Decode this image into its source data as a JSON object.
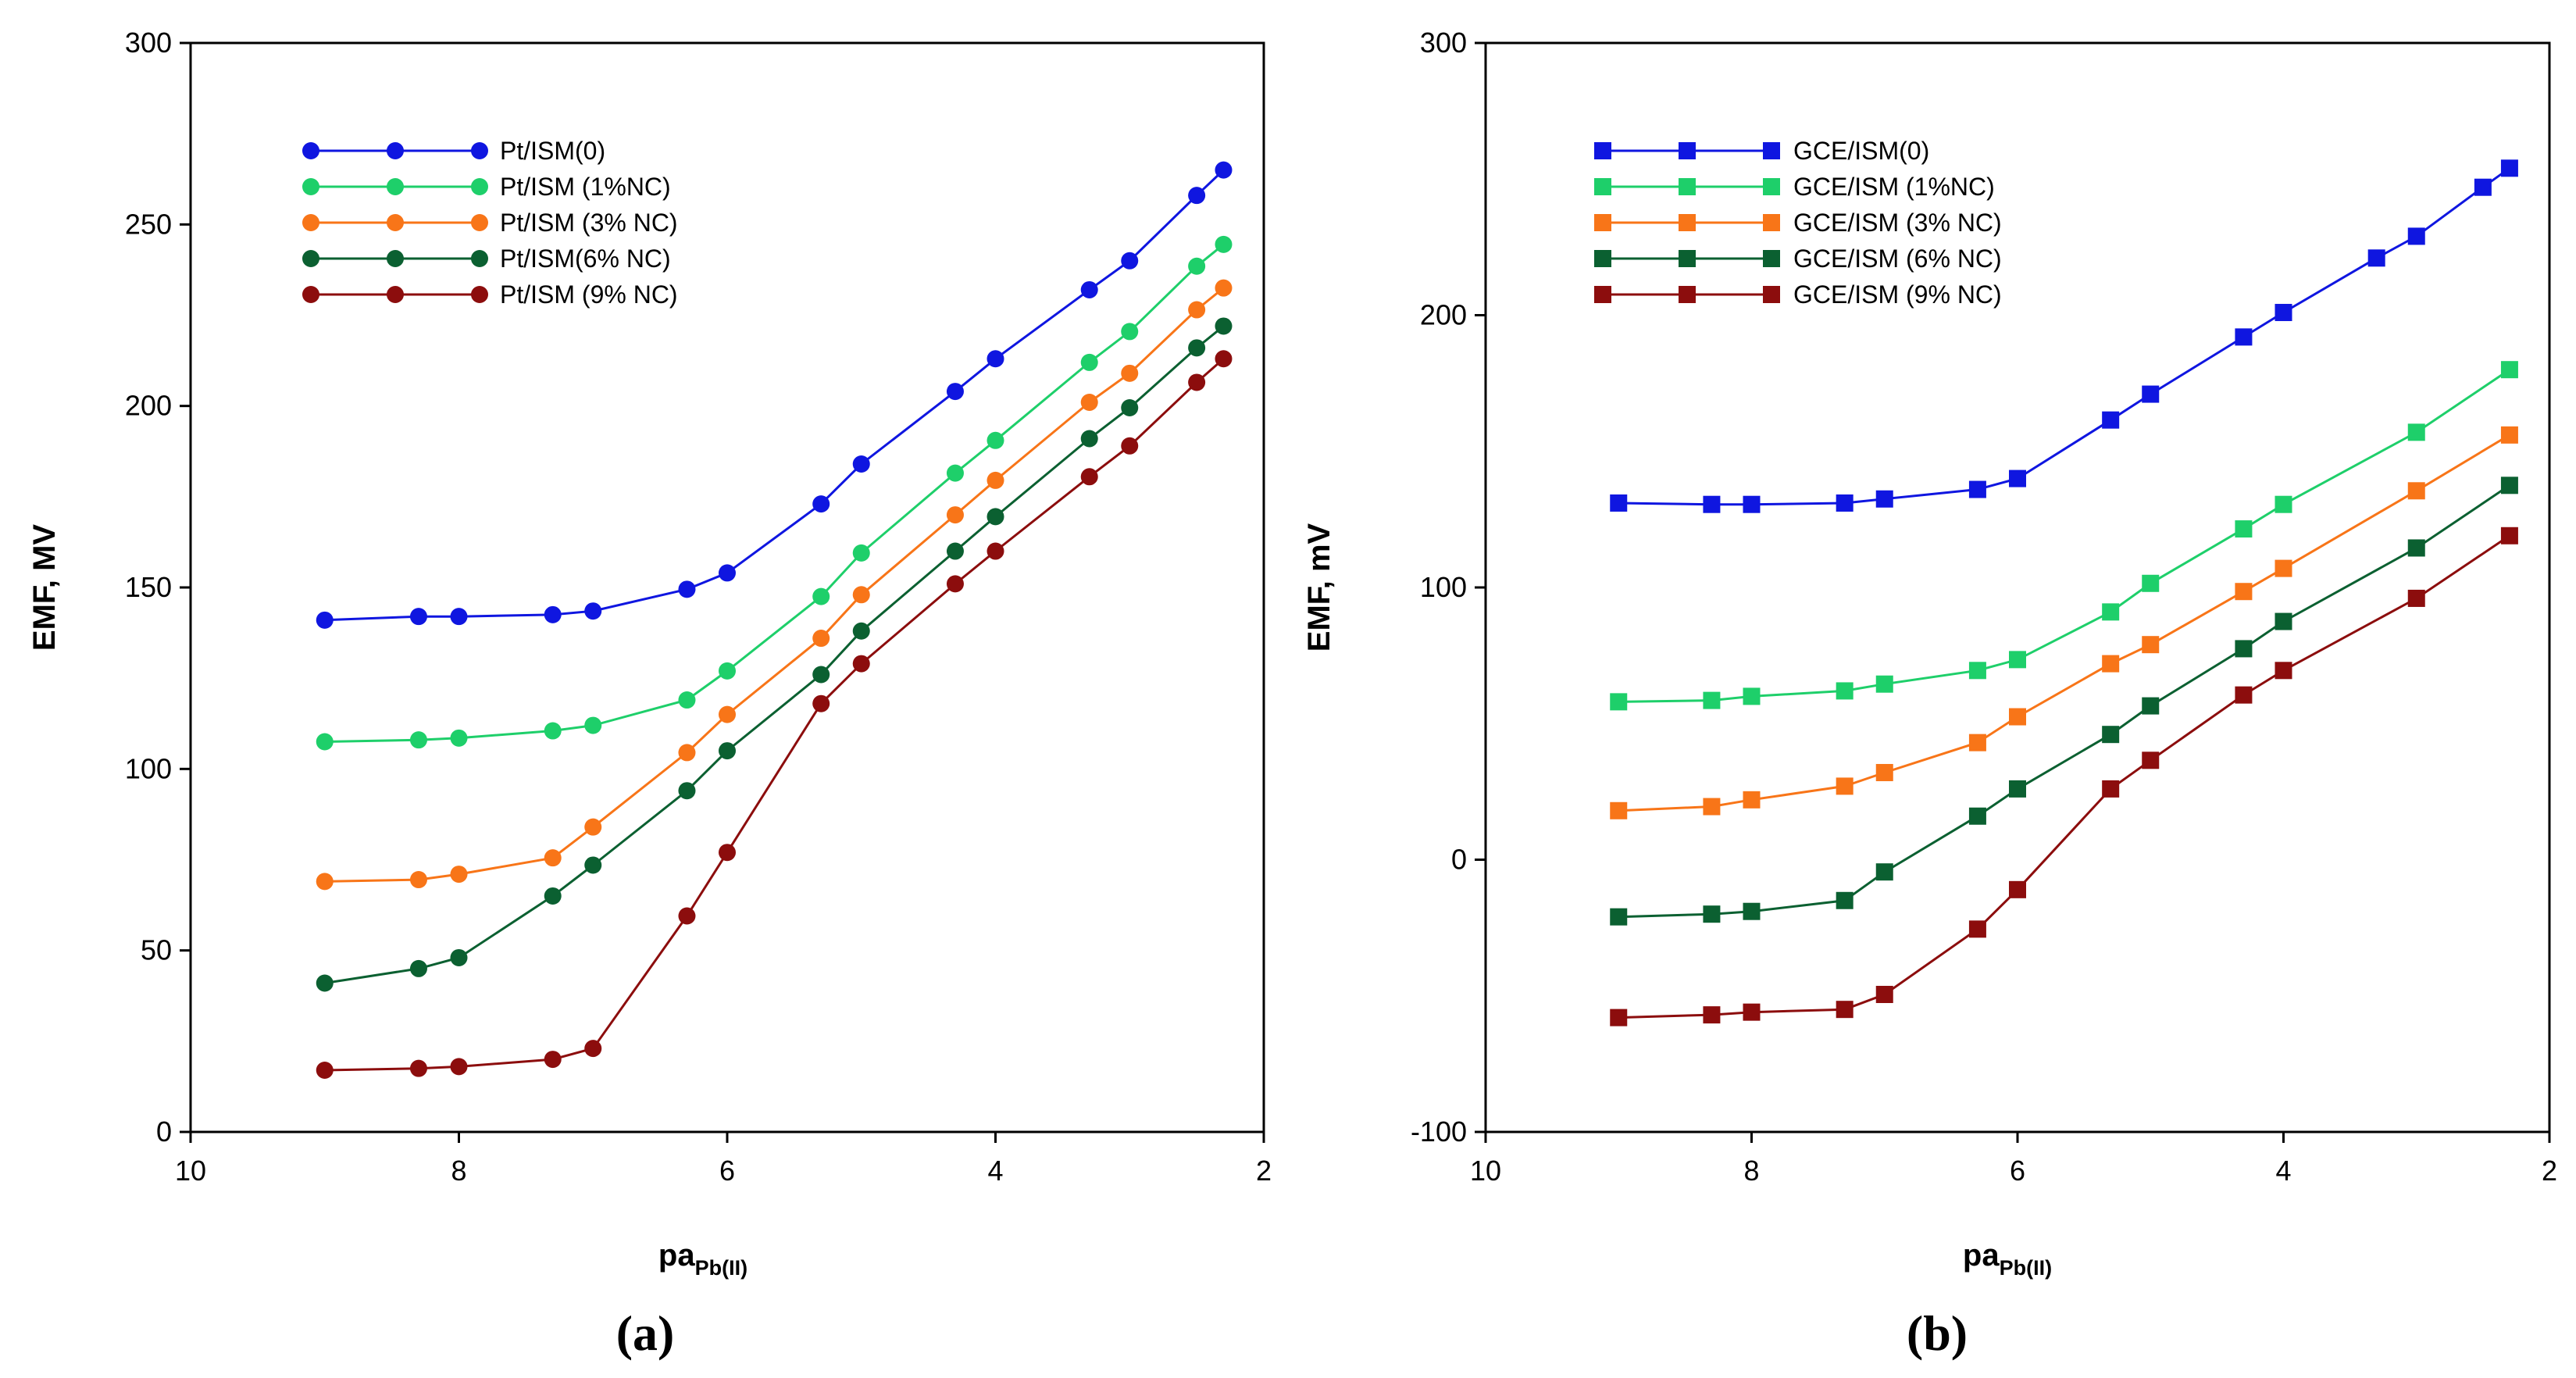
{
  "chart_data": [
    {
      "type": "line",
      "panel_label": "(a)",
      "xlabel": "pa",
      "xlabel_sub": "Pb(II)",
      "ylabel": "EMF, MV",
      "xlim": [
        10,
        2
      ],
      "ylim": [
        0,
        300
      ],
      "x_ticks": [
        10,
        8,
        6,
        4,
        2
      ],
      "y_ticks": [
        0,
        50,
        100,
        150,
        200,
        250,
        300
      ],
      "marker": "circle",
      "legend_position": "top-left",
      "x": [
        9,
        8.3,
        8,
        7.3,
        7,
        6.3,
        6,
        5.3,
        5,
        4.3,
        4,
        3.3,
        3,
        2.5,
        2.3
      ],
      "series": [
        {
          "name": "Pt/ISM(0)",
          "color": "#0f16e0",
          "values": [
            141,
            142,
            142,
            142.5,
            143.5,
            149.5,
            154,
            173,
            184,
            204,
            213,
            232,
            240,
            258,
            265
          ]
        },
        {
          "name": "Pt/ISM (1%NC)",
          "color": "#1ecf6a",
          "values": [
            107.5,
            108,
            108.5,
            110.5,
            112,
            119,
            127,
            147.5,
            159.5,
            181.5,
            190.5,
            212,
            220.5,
            238.5,
            244.5
          ]
        },
        {
          "name": "Pt/ISM (3% NC)",
          "color": "#f87518",
          "values": [
            69,
            69.5,
            71,
            75.5,
            84,
            104.5,
            115,
            136,
            148,
            170,
            179.5,
            201,
            209,
            226.5,
            232.5
          ]
        },
        {
          "name": "Pt/ISM(6% NC)",
          "color": "#0b6031",
          "values": [
            41,
            45,
            48,
            65,
            73.5,
            94,
            105,
            126,
            138,
            160,
            169.5,
            191,
            199.5,
            216,
            222
          ]
        },
        {
          "name": "Pt/ISM (9% NC)",
          "color": "#8c0d0d",
          "values": [
            17,
            17.5,
            18,
            20,
            23,
            59.5,
            77,
            118,
            129,
            151,
            160,
            180.5,
            189,
            206.5,
            213
          ]
        }
      ]
    },
    {
      "type": "line",
      "panel_label": "(b)",
      "xlabel": "pa",
      "xlabel_sub": "Pb(II)",
      "ylabel": "EMF, mV",
      "xlim": [
        10,
        2
      ],
      "ylim": [
        -100,
        300
      ],
      "x_ticks": [
        10,
        8,
        6,
        4,
        2
      ],
      "y_ticks": [
        -100,
        0,
        100,
        200,
        300
      ],
      "marker": "square",
      "legend_position": "top-left",
      "x": [
        9,
        8.3,
        8,
        7.3,
        7,
        6.3,
        6,
        5.3,
        5,
        4.3,
        4,
        3.3,
        3,
        2.5,
        2.3
      ],
      "series": [
        {
          "name": "GCE/ISM(0)",
          "color": "#0f16e0",
          "values": [
            131,
            130.5,
            130.5,
            131,
            132.5,
            136,
            140,
            161.5,
            171,
            192,
            201,
            221,
            229,
            247,
            254
          ]
        },
        {
          "name": "GCE/ISM (1%NC)",
          "color": "#1ecf6a",
          "values": [
            58,
            58.5,
            60,
            62,
            64.5,
            69.5,
            73.5,
            91,
            101.5,
            121.5,
            130.5,
            null,
            157,
            null,
            180
          ]
        },
        {
          "name": "GCE/ISM (3% NC)",
          "color": "#f87518",
          "values": [
            18,
            19.5,
            22,
            27,
            32,
            43,
            52.5,
            72,
            79,
            98.5,
            107,
            null,
            135.5,
            null,
            156
          ]
        },
        {
          "name": "GCE/ISM (6% NC)",
          "color": "#0b6031",
          "values": [
            -21,
            -20,
            -19,
            -15,
            -4.5,
            16,
            26,
            46,
            56.5,
            77.5,
            87.5,
            null,
            114.5,
            null,
            137.5
          ]
        },
        {
          "name": "GCE/ISM (9% NC)",
          "color": "#8c0d0d",
          "values": [
            -58,
            -57,
            -56,
            -55,
            -49.5,
            -25.5,
            -11,
            26,
            36.5,
            60.5,
            69.5,
            null,
            96,
            null,
            119
          ]
        }
      ]
    }
  ]
}
